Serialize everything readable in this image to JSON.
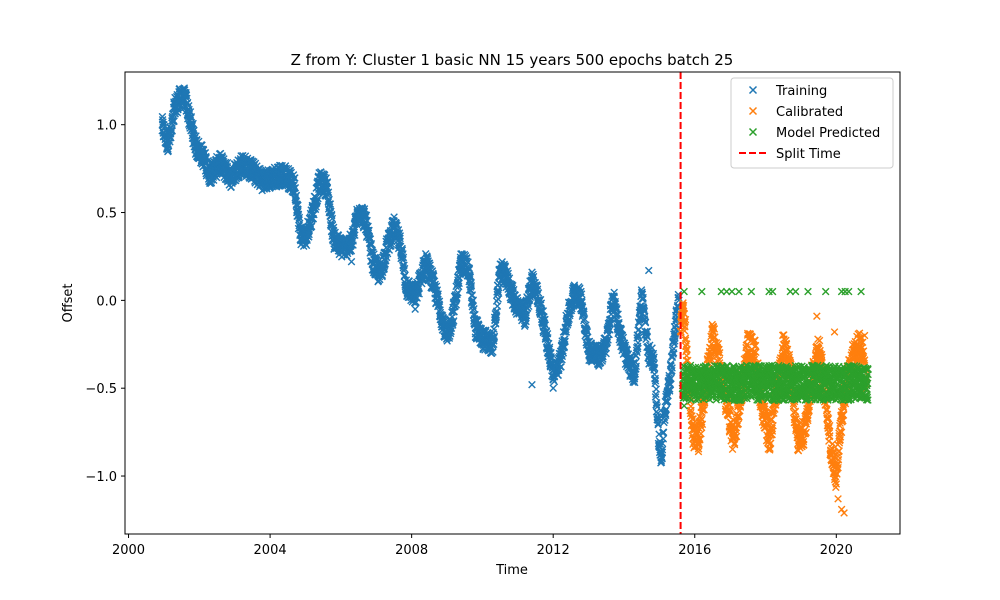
{
  "chart_data": {
    "type": "scatter",
    "title": "Z from Y: Cluster 1 basic NN 15 years 500 epochs batch 25",
    "xlabel": "Time",
    "ylabel": "Offset",
    "xlim": [
      1999.9,
      2021.8
    ],
    "ylim": [
      -1.33,
      1.3
    ],
    "xticks": [
      2000,
      2004,
      2008,
      2012,
      2016,
      2020
    ],
    "xtick_labels": [
      "2000",
      "2004",
      "2008",
      "2012",
      "2016",
      "2020"
    ],
    "yticks": [
      -1.0,
      -0.5,
      0.0,
      0.5,
      1.0
    ],
    "ytick_labels": [
      "−1.0",
      "−0.5",
      "0.0",
      "0.5",
      "1.0"
    ],
    "grid": false,
    "legend_position": "upper right",
    "split_time": 2015.6,
    "series": [
      {
        "name": "Training",
        "marker": "x",
        "color": "#1f77b4",
        "path": [
          [
            2000.95,
            0.99
          ],
          [
            2001.1,
            0.9
          ],
          [
            2001.2,
            0.94
          ],
          [
            2001.3,
            1.1
          ],
          [
            2001.45,
            1.15
          ],
          [
            2001.6,
            1.15
          ],
          [
            2001.9,
            0.88
          ],
          [
            2002.1,
            0.82
          ],
          [
            2002.3,
            0.72
          ],
          [
            2002.6,
            0.78
          ],
          [
            2002.9,
            0.7
          ],
          [
            2003.2,
            0.78
          ],
          [
            2003.5,
            0.74
          ],
          [
            2003.8,
            0.68
          ],
          [
            2004.1,
            0.7
          ],
          [
            2004.4,
            0.72
          ],
          [
            2004.7,
            0.65
          ],
          [
            2004.85,
            0.38
          ],
          [
            2005.0,
            0.35
          ],
          [
            2005.2,
            0.5
          ],
          [
            2005.4,
            0.68
          ],
          [
            2005.6,
            0.65
          ],
          [
            2005.8,
            0.35
          ],
          [
            2006.0,
            0.3
          ],
          [
            2006.3,
            0.32
          ],
          [
            2006.5,
            0.52
          ],
          [
            2006.7,
            0.45
          ],
          [
            2006.9,
            0.22
          ],
          [
            2007.1,
            0.14
          ],
          [
            2007.3,
            0.3
          ],
          [
            2007.5,
            0.42
          ],
          [
            2007.7,
            0.3
          ],
          [
            2007.85,
            0.08
          ],
          [
            2008.1,
            0.02
          ],
          [
            2008.4,
            0.22
          ],
          [
            2008.6,
            0.1
          ],
          [
            2008.8,
            -0.05
          ],
          [
            2009.0,
            -0.22
          ],
          [
            2009.2,
            -0.05
          ],
          [
            2009.4,
            0.22
          ],
          [
            2009.6,
            0.18
          ],
          [
            2009.8,
            -0.15
          ],
          [
            2010.0,
            -0.22
          ],
          [
            2010.3,
            -0.25
          ],
          [
            2010.5,
            0.18
          ],
          [
            2010.7,
            0.12
          ],
          [
            2010.9,
            0.0
          ],
          [
            2011.2,
            -0.1
          ],
          [
            2011.4,
            0.12
          ],
          [
            2011.6,
            0.0
          ],
          [
            2011.8,
            -0.2
          ],
          [
            2012.0,
            -0.42
          ],
          [
            2012.2,
            -0.35
          ],
          [
            2012.4,
            -0.1
          ],
          [
            2012.6,
            0.05
          ],
          [
            2012.8,
            0.0
          ],
          [
            2013.0,
            -0.28
          ],
          [
            2013.3,
            -0.32
          ],
          [
            2013.5,
            -0.25
          ],
          [
            2013.7,
            0.02
          ],
          [
            2013.9,
            -0.2
          ],
          [
            2014.1,
            -0.35
          ],
          [
            2014.3,
            -0.42
          ],
          [
            2014.5,
            0.02
          ],
          [
            2014.7,
            -0.3
          ],
          [
            2014.85,
            -0.35
          ],
          [
            2014.95,
            -0.7
          ],
          [
            2015.05,
            -0.92
          ],
          [
            2015.15,
            -0.65
          ],
          [
            2015.3,
            -0.45
          ],
          [
            2015.45,
            -0.15
          ],
          [
            2015.55,
            0.0
          ]
        ],
        "extra_points": [
          [
            2011.4,
            -0.48
          ],
          [
            2012.0,
            -0.5
          ],
          [
            2014.7,
            0.17
          ],
          [
            2008.1,
            -0.05
          ],
          [
            2006.3,
            0.22
          ]
        ],
        "jitter": 0.06
      },
      {
        "name": "Calibrated",
        "marker": "x",
        "color": "#ff7f0e",
        "path": [
          [
            2015.6,
            -0.15
          ],
          [
            2015.7,
            -0.05
          ],
          [
            2015.8,
            -0.4
          ],
          [
            2015.95,
            -0.75
          ],
          [
            2016.1,
            -0.8
          ],
          [
            2016.3,
            -0.5
          ],
          [
            2016.5,
            -0.2
          ],
          [
            2016.7,
            -0.35
          ],
          [
            2016.9,
            -0.6
          ],
          [
            2017.1,
            -0.8
          ],
          [
            2017.3,
            -0.55
          ],
          [
            2017.5,
            -0.25
          ],
          [
            2017.7,
            -0.3
          ],
          [
            2017.9,
            -0.6
          ],
          [
            2018.1,
            -0.8
          ],
          [
            2018.3,
            -0.55
          ],
          [
            2018.5,
            -0.25
          ],
          [
            2018.7,
            -0.4
          ],
          [
            2018.9,
            -0.8
          ],
          [
            2019.1,
            -0.75
          ],
          [
            2019.3,
            -0.45
          ],
          [
            2019.5,
            -0.25
          ],
          [
            2019.7,
            -0.55
          ],
          [
            2019.85,
            -0.85
          ],
          [
            2020.0,
            -1.0
          ],
          [
            2020.1,
            -0.75
          ],
          [
            2020.3,
            -0.45
          ],
          [
            2020.5,
            -0.3
          ],
          [
            2020.7,
            -0.25
          ],
          [
            2020.85,
            -0.45
          ]
        ],
        "extra_points": [
          [
            2019.45,
            -0.09
          ],
          [
            2020.05,
            -1.13
          ],
          [
            2020.15,
            -1.19
          ],
          [
            2020.22,
            -1.21
          ],
          [
            2019.95,
            -0.18
          ],
          [
            2020.8,
            -0.2
          ]
        ],
        "jitter": 0.08
      },
      {
        "name": "Model Predicted",
        "marker": "x",
        "color": "#2ca02c",
        "band": {
          "x_start": 2015.65,
          "x_end": 2020.9,
          "center": -0.47,
          "spread": 0.1
        },
        "extra_points": [
          [
            2015.7,
            0.05
          ],
          [
            2016.2,
            0.05
          ],
          [
            2016.75,
            0.05
          ],
          [
            2016.9,
            0.05
          ],
          [
            2017.05,
            0.05
          ],
          [
            2017.25,
            0.05
          ],
          [
            2017.6,
            0.05
          ],
          [
            2018.1,
            0.05
          ],
          [
            2018.2,
            0.05
          ],
          [
            2018.7,
            0.05
          ],
          [
            2018.85,
            0.05
          ],
          [
            2019.2,
            0.05
          ],
          [
            2019.7,
            0.05
          ],
          [
            2020.15,
            0.05
          ],
          [
            2020.25,
            0.05
          ],
          [
            2020.35,
            0.05
          ],
          [
            2020.7,
            0.05
          ],
          [
            2015.7,
            -0.6
          ]
        ]
      },
      {
        "name": "Split Time",
        "line": "dashed",
        "color": "#ff0000"
      }
    ]
  }
}
